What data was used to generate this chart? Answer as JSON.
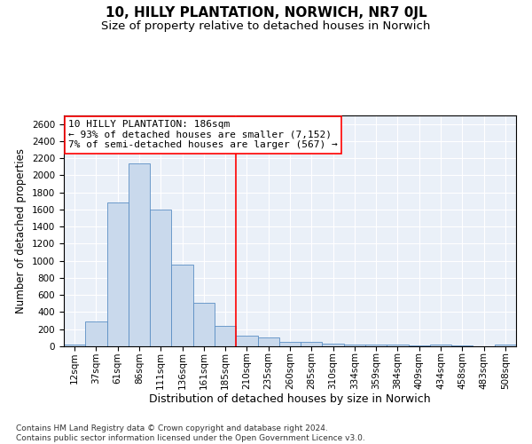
{
  "title": "10, HILLY PLANTATION, NORWICH, NR7 0JL",
  "subtitle": "Size of property relative to detached houses in Norwich",
  "xlabel": "Distribution of detached houses by size in Norwich",
  "ylabel": "Number of detached properties",
  "footer_line1": "Contains HM Land Registry data © Crown copyright and database right 2024.",
  "footer_line2": "Contains public sector information licensed under the Open Government Licence v3.0.",
  "annotation_line1": "10 HILLY PLANTATION: 186sqm",
  "annotation_line2": "← 93% of detached houses are smaller (7,152)",
  "annotation_line3": "7% of semi-detached houses are larger (567) →",
  "bar_labels": [
    "12sqm",
    "37sqm",
    "61sqm",
    "86sqm",
    "111sqm",
    "136sqm",
    "161sqm",
    "185sqm",
    "210sqm",
    "235sqm",
    "260sqm",
    "285sqm",
    "310sqm",
    "334sqm",
    "359sqm",
    "384sqm",
    "409sqm",
    "434sqm",
    "458sqm",
    "483sqm",
    "508sqm"
  ],
  "bar_values": [
    25,
    295,
    1680,
    2140,
    1600,
    960,
    505,
    240,
    120,
    100,
    50,
    50,
    35,
    20,
    20,
    20,
    15,
    20,
    15,
    5,
    25
  ],
  "bar_color": "#c9d9ec",
  "bar_edge_color": "#5b8ec4",
  "vline_x": 7.5,
  "vline_color": "red",
  "annotation_box_color": "white",
  "annotation_box_edgecolor": "red",
  "background_color": "#eaf0f8",
  "ylim": [
    0,
    2700
  ],
  "yticks": [
    0,
    200,
    400,
    600,
    800,
    1000,
    1200,
    1400,
    1600,
    1800,
    2000,
    2200,
    2400,
    2600
  ],
  "title_fontsize": 11,
  "subtitle_fontsize": 9.5,
  "xlabel_fontsize": 9,
  "ylabel_fontsize": 8.5,
  "tick_fontsize": 7.5,
  "annotation_fontsize": 8,
  "footer_fontsize": 6.5
}
